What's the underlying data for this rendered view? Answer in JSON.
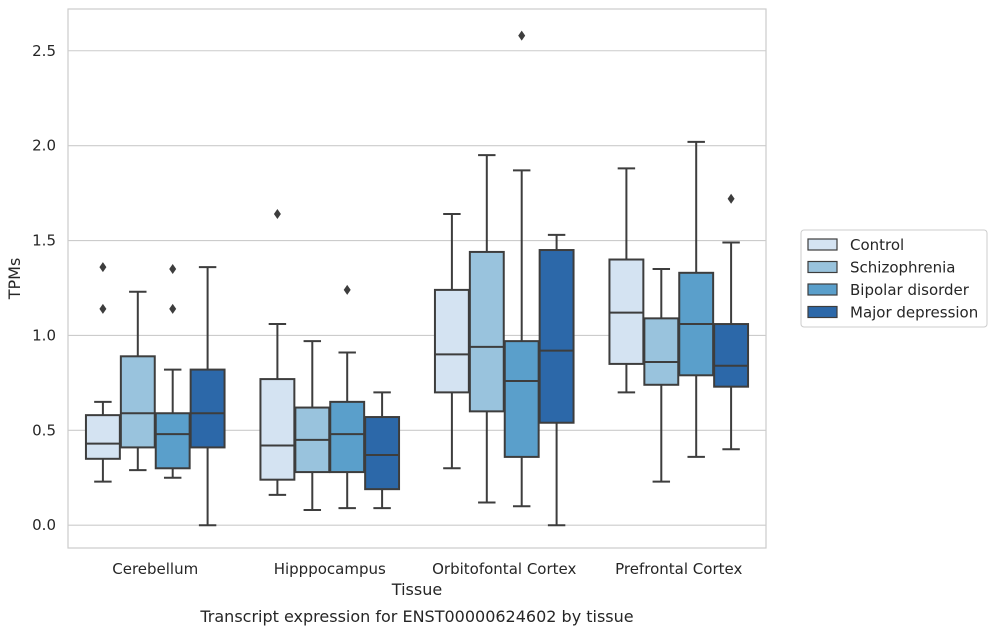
{
  "chart_data": {
    "type": "box",
    "xlabel": "Tissue",
    "ylabel": "TPMs",
    "caption": "Transcript expression for ENST00000624602 by tissue",
    "ylim": [
      -0.12,
      2.72
    ],
    "yticks": [
      "0.0",
      "0.5",
      "1.0",
      "1.5",
      "2.0",
      "2.5"
    ],
    "ytick_values": [
      0.0,
      0.5,
      1.0,
      1.5,
      2.0,
      2.5
    ],
    "grid": "horizontal",
    "legend_position": "right",
    "categories": [
      "Cerebellum",
      "Hipppocampus",
      "Orbitofontal Cortex",
      "Prefrontal Cortex"
    ],
    "series": [
      {
        "name": "Control",
        "color": "#d4e3f2",
        "boxes": [
          {
            "whislo": 0.23,
            "q1": 0.35,
            "med": 0.43,
            "q3": 0.58,
            "whishi": 0.65,
            "fliers": []
          },
          {
            "whislo": 0.16,
            "q1": 0.24,
            "med": 0.42,
            "q3": 0.77,
            "whishi": 1.06,
            "fliers": [
              1.64
            ]
          },
          {
            "whislo": 0.3,
            "q1": 0.7,
            "med": 0.9,
            "q3": 1.24,
            "whishi": 1.64,
            "fliers": []
          },
          {
            "whislo": 0.7,
            "q1": 0.85,
            "med": 1.12,
            "q3": 1.4,
            "whishi": 1.88,
            "fliers": []
          }
        ]
      },
      {
        "name": "Schizophrenia",
        "color": "#99c3dd",
        "boxes": [
          {
            "whislo": 0.29,
            "q1": 0.41,
            "med": 0.59,
            "q3": 0.89,
            "whishi": 1.23,
            "fliers": []
          },
          {
            "whislo": 0.08,
            "q1": 0.28,
            "med": 0.45,
            "q3": 0.62,
            "whishi": 0.97,
            "fliers": []
          },
          {
            "whislo": 0.12,
            "q1": 0.6,
            "med": 0.94,
            "q3": 1.44,
            "whishi": 1.95,
            "fliers": []
          },
          {
            "whislo": 0.23,
            "q1": 0.74,
            "med": 0.86,
            "q3": 1.09,
            "whishi": 1.35,
            "fliers": []
          }
        ]
      },
      {
        "name": "Bipolar disorder",
        "color": "#5a9fcb",
        "boxes": [
          {
            "whislo": 0.25,
            "q1": 0.3,
            "med": 0.48,
            "q3": 0.59,
            "whishi": 0.82,
            "fliers": [
              1.14,
              1.35
            ]
          },
          {
            "whislo": 0.09,
            "q1": 0.28,
            "med": 0.48,
            "q3": 0.65,
            "whishi": 0.91,
            "fliers": [
              1.24
            ]
          },
          {
            "whislo": 0.1,
            "q1": 0.36,
            "med": 0.76,
            "q3": 0.97,
            "whishi": 1.87,
            "fliers": [
              2.58
            ]
          },
          {
            "whislo": 0.36,
            "q1": 0.79,
            "med": 1.06,
            "q3": 1.33,
            "whishi": 2.02,
            "fliers": []
          }
        ]
      },
      {
        "name": "Major depression",
        "color": "#2c68a9",
        "boxes": [
          {
            "whislo": 0.0,
            "q1": 0.41,
            "med": 0.59,
            "q3": 0.82,
            "whishi": 1.36,
            "fliers": []
          },
          {
            "whislo": 0.09,
            "q1": 0.19,
            "med": 0.37,
            "q3": 0.57,
            "whishi": 0.7,
            "fliers": []
          },
          {
            "whislo": 0.0,
            "q1": 0.54,
            "med": 0.92,
            "q3": 1.45,
            "whishi": 1.53,
            "fliers": []
          },
          {
            "whislo": 0.4,
            "q1": 0.73,
            "med": 0.84,
            "q3": 1.06,
            "whishi": 1.49,
            "fliers": [
              1.72
            ]
          }
        ]
      }
    ],
    "extra_fliers": [
      {
        "category": "Cerebellum",
        "values": [
          1.14,
          1.36
        ]
      }
    ]
  }
}
